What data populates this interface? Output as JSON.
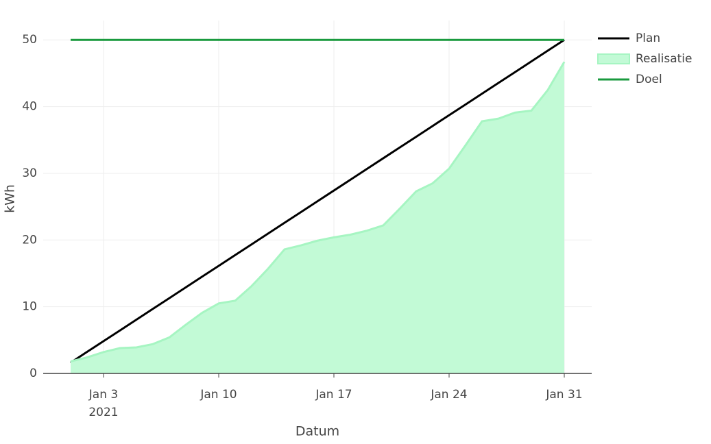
{
  "chart_data": {
    "type": "line",
    "x_title": "Datum",
    "y_title": "kWh",
    "x": [
      "2021-01-01",
      "2021-01-02",
      "2021-01-03",
      "2021-01-04",
      "2021-01-05",
      "2021-01-06",
      "2021-01-07",
      "2021-01-08",
      "2021-01-09",
      "2021-01-10",
      "2021-01-11",
      "2021-01-12",
      "2021-01-13",
      "2021-01-14",
      "2021-01-15",
      "2021-01-16",
      "2021-01-17",
      "2021-01-18",
      "2021-01-19",
      "2021-01-20",
      "2021-01-21",
      "2021-01-22",
      "2021-01-23",
      "2021-01-24",
      "2021-01-25",
      "2021-01-26",
      "2021-01-27",
      "2021-01-28",
      "2021-01-29",
      "2021-01-30",
      "2021-01-31"
    ],
    "series": [
      {
        "name": "Plan",
        "color": "#000000",
        "values": [
          1.61,
          3.23,
          4.84,
          6.45,
          8.06,
          9.68,
          11.29,
          12.9,
          14.52,
          16.13,
          17.74,
          19.35,
          20.97,
          22.58,
          24.19,
          25.81,
          27.42,
          29.03,
          30.65,
          32.26,
          33.87,
          35.48,
          37.1,
          38.71,
          40.32,
          41.94,
          43.55,
          45.16,
          46.77,
          48.39,
          50
        ]
      },
      {
        "name": "Realisatie",
        "color": "#a6f5c2",
        "fill": "#c2fad6",
        "values": [
          1.8,
          2.4,
          3.2,
          3.8,
          3.9,
          4.4,
          5.4,
          7.3,
          9.1,
          10.5,
          10.9,
          13.1,
          15.7,
          18.6,
          19.2,
          19.9,
          20.4,
          20.8,
          21.4,
          22.2,
          24.7,
          27.3,
          28.5,
          30.7,
          34.2,
          37.8,
          38.2,
          39.1,
          39.4,
          42.5,
          46.7
        ]
      },
      {
        "name": "Doel",
        "color": "#1a9a3e",
        "values": [
          50,
          50,
          50,
          50,
          50,
          50,
          50,
          50,
          50,
          50,
          50,
          50,
          50,
          50,
          50,
          50,
          50,
          50,
          50,
          50,
          50,
          50,
          50,
          50,
          50,
          50,
          50,
          50,
          50,
          50,
          50
        ]
      }
    ],
    "xlim": [
      "2020-12-30T08:00",
      "2021-02-01T16:00"
    ],
    "xticks": [
      {
        "value": "2021-01-03",
        "label": "Jan 3",
        "sublabel": "2021"
      },
      {
        "value": "2021-01-10",
        "label": "Jan 10"
      },
      {
        "value": "2021-01-17",
        "label": "Jan 17"
      },
      {
        "value": "2021-01-24",
        "label": "Jan 24"
      },
      {
        "value": "2021-01-31",
        "label": "Jan 31"
      }
    ],
    "ylim": [
      0,
      52.9
    ],
    "yticks": [
      0,
      10,
      20,
      30,
      40,
      50
    ],
    "grid": true,
    "legend": "right"
  }
}
